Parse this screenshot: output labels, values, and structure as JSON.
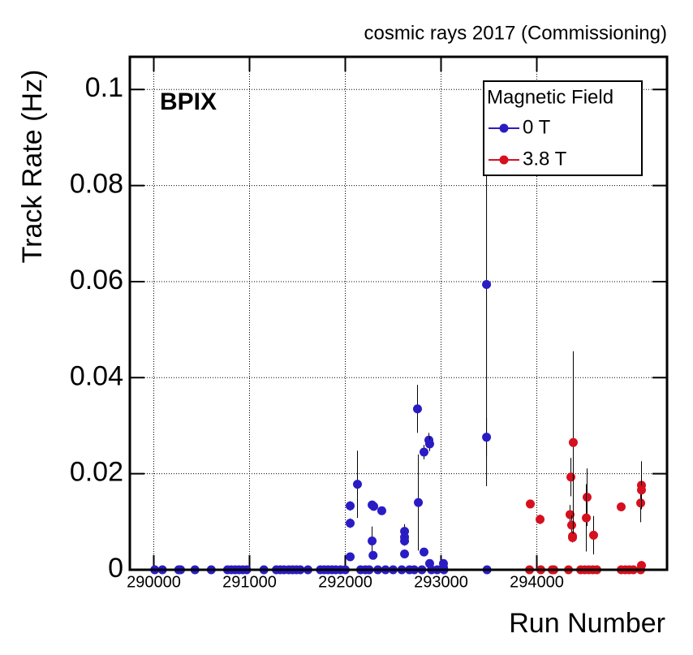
{
  "chart_data": {
    "type": "scatter",
    "title": "cosmic rays 2017 (Commissioning)",
    "annotation": "BPIX",
    "legend_title": "Magnetic Field",
    "legend_position": "upper right",
    "x_label": "Run Number",
    "y_label": "Track Rate (Hz)",
    "xlim": [
      289750,
      295360
    ],
    "ylim": [
      0,
      0.1068
    ],
    "xticks": [
      290000,
      291000,
      292000,
      293000,
      294000
    ],
    "yticks": [
      0,
      0.02,
      0.04,
      0.06,
      0.08,
      0.1
    ],
    "grid": true,
    "series": [
      {
        "name": "0 T",
        "color": "#2a1cc4",
        "x": [
          290010,
          290090,
          290260,
          290280,
          290430,
          290600,
          290770,
          290810,
          290850,
          290890,
          290930,
          290970,
          291150,
          291280,
          291320,
          291360,
          291410,
          291450,
          291490,
          291530,
          291610,
          291740,
          291780,
          291820,
          291860,
          291900,
          291950,
          292000,
          292160,
          292210,
          292250,
          292340,
          292420,
          292500,
          292590,
          292670,
          292720,
          292800,
          292900,
          292960,
          293030,
          293480,
          292051,
          292051,
          292051,
          292127,
          292280,
          292297,
          292280,
          292290,
          292381,
          292619,
          292619,
          292619,
          292619,
          292754,
          292763,
          292822,
          292873,
          292881,
          292822,
          292881,
          293025,
          293025,
          293475,
          293475
        ],
        "values": [
          0,
          0,
          0,
          0,
          0,
          0,
          0,
          0,
          0,
          0,
          0,
          0,
          0,
          0,
          0,
          0,
          0,
          0,
          0,
          0,
          0,
          0,
          0,
          0,
          0,
          0,
          0,
          0,
          0,
          0,
          0,
          0,
          0,
          0,
          0,
          0,
          0,
          0,
          0,
          0,
          0,
          0,
          0.0133,
          0.0097,
          0.0027,
          0.0178,
          0.0135,
          0.0132,
          0.006,
          0.003,
          0.0123,
          0.008,
          0.0068,
          0.006,
          0.0033,
          0.0335,
          0.014,
          0.0245,
          0.027,
          0.0262,
          0.0037,
          0.0013,
          0.0013,
          0.0005,
          0.0594,
          0.0276
        ],
        "errors": [
          0,
          0,
          0,
          0,
          0,
          0,
          0,
          0,
          0,
          0,
          0,
          0,
          0,
          0,
          0,
          0,
          0,
          0,
          0,
          0,
          0,
          0,
          0,
          0,
          0,
          0,
          0,
          0,
          0,
          0,
          0,
          0,
          0,
          0,
          0,
          0,
          0,
          0,
          0,
          0,
          0,
          0,
          0.001,
          0.001,
          0.0005,
          0.007,
          0.0008,
          0.0008,
          0.003,
          0.0008,
          0.0008,
          0.0015,
          0.001,
          0.001,
          0.0008,
          0.005,
          0.01,
          0.0015,
          0.0015,
          0.0015,
          0.0005,
          0.0003,
          0.0003,
          0.0002,
          0.042,
          0.004
        ]
      },
      {
        "name": "3.8 T",
        "color": "#d6101e",
        "x": [
          293924,
          294042,
          294161,
          294178,
          294331,
          294458,
          294500,
          294542,
          294585,
          294627,
          294881,
          294924,
          294966,
          295008,
          295085,
          293932,
          294034,
          294347,
          294356,
          294364,
          294373,
          294373,
          294381,
          294525,
          294517,
          294593,
          294881,
          295085,
          295093,
          295093,
          295093
        ],
        "values": [
          0,
          0,
          0,
          0,
          0,
          0,
          0,
          0,
          0,
          0,
          0,
          0,
          0,
          0,
          0,
          0.0137,
          0.0105,
          0.0115,
          0.0193,
          0.0093,
          0.007,
          0.0067,
          0.0265,
          0.0151,
          0.0108,
          0.0072,
          0.0131,
          0.0139,
          0.0176,
          0.0166,
          0.0009
        ],
        "errors": [
          0,
          0,
          0,
          0,
          0,
          0,
          0,
          0,
          0,
          0,
          0,
          0,
          0,
          0,
          0,
          0.0005,
          0.001,
          0.002,
          0.004,
          0.002,
          0.001,
          0.001,
          0.019,
          0.006,
          0.007,
          0.004,
          0.0005,
          0.004,
          0.005,
          0.002,
          0.0004
        ]
      }
    ]
  }
}
